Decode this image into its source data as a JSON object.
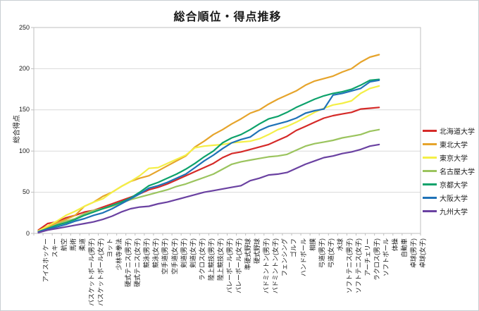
{
  "title": "総合順位・得点推移",
  "y_axis": {
    "title": "総合得点"
  },
  "chart_data": {
    "type": "line",
    "title": "総合順位・得点推移",
    "xlabel": "",
    "ylabel": "総合得点",
    "ylim": [
      0,
      250
    ],
    "y_ticks": [
      0,
      50,
      100,
      150,
      200,
      250
    ],
    "grid": true,
    "legend_position": "right",
    "categories": [
      "アイスホッケー",
      "スキー",
      "航空",
      "馬術",
      "柔道",
      "バスケットボール(男子)",
      "バスケットボール(女子)",
      "ヨット",
      "少林寺拳法",
      "硬式テニス(男子)",
      "硬式テニス(女子)",
      "競泳(男子)",
      "競泳(女子)",
      "空手道(男子)",
      "空手道(女子)",
      "剣道(男子)",
      "剣道(女子)",
      "ラクロス(女子)",
      "陸上競技(男子)",
      "陸上競技(女子)",
      "バレーボール(男子)",
      "バレーボール(女子)",
      "準硬式野球",
      "硬式野球",
      "バドミントン(男子)",
      "バドミントン(女子)",
      "フェンシング",
      "ゴルフ",
      "ハンドボール",
      "相撲",
      "弓道(男子)",
      "弓道(女子)",
      "水球",
      "ソフトテニス(男子)",
      "ソフトテニス(女子)",
      "アーチェリー",
      "ラクロス(男子)",
      "ソフトボール",
      "体操",
      "自動車",
      "卓球(男子)",
      "卓球(女子)"
    ],
    "series": [
      {
        "id": "hokkaido",
        "name": "北海道大学",
        "color": "#d52a28",
        "values": [
          4,
          12,
          14,
          19,
          22,
          26,
          28,
          32,
          36,
          40,
          44,
          48,
          53,
          56,
          60,
          65,
          70,
          75,
          80,
          85,
          92,
          97,
          99,
          102,
          105,
          108,
          113,
          118,
          125,
          130,
          135,
          140,
          143,
          145,
          147,
          151,
          152,
          153
        ]
      },
      {
        "id": "tohoku",
        "name": "東北大学",
        "color": "#e6a42b",
        "values": [
          3,
          8,
          13,
          17,
          22,
          33,
          38,
          45,
          50,
          57,
          63,
          67,
          70,
          76,
          82,
          88,
          94,
          105,
          112,
          120,
          126,
          133,
          139,
          146,
          150,
          157,
          163,
          168,
          173,
          180,
          185,
          188,
          191,
          196,
          200,
          208,
          214,
          217
        ]
      },
      {
        "id": "tokyo",
        "name": "東京大学",
        "color": "#f4ef47",
        "values": [
          3,
          9,
          15,
          22,
          27,
          33,
          38,
          42,
          50,
          57,
          63,
          70,
          79,
          80,
          85,
          90,
          95,
          104,
          106,
          107,
          108,
          110,
          111,
          112,
          115,
          120,
          126,
          130,
          135,
          141,
          147,
          152,
          156,
          158,
          161,
          170,
          176,
          179
        ]
      },
      {
        "id": "nagoya",
        "name": "名古屋大学",
        "color": "#9bc45e",
        "values": [
          2,
          6,
          11,
          15,
          18,
          24,
          28,
          30,
          33,
          37,
          41,
          44,
          47,
          50,
          53,
          57,
          60,
          64,
          68,
          72,
          78,
          84,
          87,
          89,
          91,
          93,
          94,
          96,
          101,
          106,
          109,
          111,
          113,
          116,
          118,
          120,
          124,
          126
        ]
      },
      {
        "id": "kyoto",
        "name": "京都大学",
        "color": "#0da26b",
        "values": [
          2,
          6,
          10,
          13,
          17,
          22,
          26,
          30,
          34,
          38,
          43,
          50,
          58,
          62,
          67,
          72,
          78,
          85,
          93,
          100,
          110,
          116,
          120,
          126,
          133,
          139,
          142,
          147,
          153,
          158,
          163,
          167,
          170,
          172,
          175,
          180,
          186,
          187
        ]
      },
      {
        "id": "osaka",
        "name": "大阪大学",
        "color": "#1f72b7",
        "values": [
          2,
          5,
          8,
          11,
          15,
          18,
          22,
          25,
          30,
          36,
          42,
          48,
          55,
          58,
          62,
          67,
          72,
          80,
          88,
          95,
          103,
          110,
          114,
          117,
          125,
          130,
          133,
          136,
          140,
          146,
          149,
          151,
          168,
          170,
          173,
          176,
          184,
          186
        ]
      },
      {
        "id": "kyushu",
        "name": "九州大学",
        "color": "#6a41a1",
        "values": [
          1,
          4,
          6,
          8,
          10,
          12,
          14,
          17,
          21,
          26,
          30,
          32,
          33,
          36,
          38,
          41,
          44,
          47,
          50,
          52,
          54,
          56,
          58,
          64,
          67,
          71,
          72,
          74,
          79,
          84,
          88,
          92,
          94,
          97,
          99,
          102,
          106,
          108
        ]
      }
    ],
    "frame_color": "#bfbfbf",
    "gridline_color": "#d9d9d9"
  }
}
